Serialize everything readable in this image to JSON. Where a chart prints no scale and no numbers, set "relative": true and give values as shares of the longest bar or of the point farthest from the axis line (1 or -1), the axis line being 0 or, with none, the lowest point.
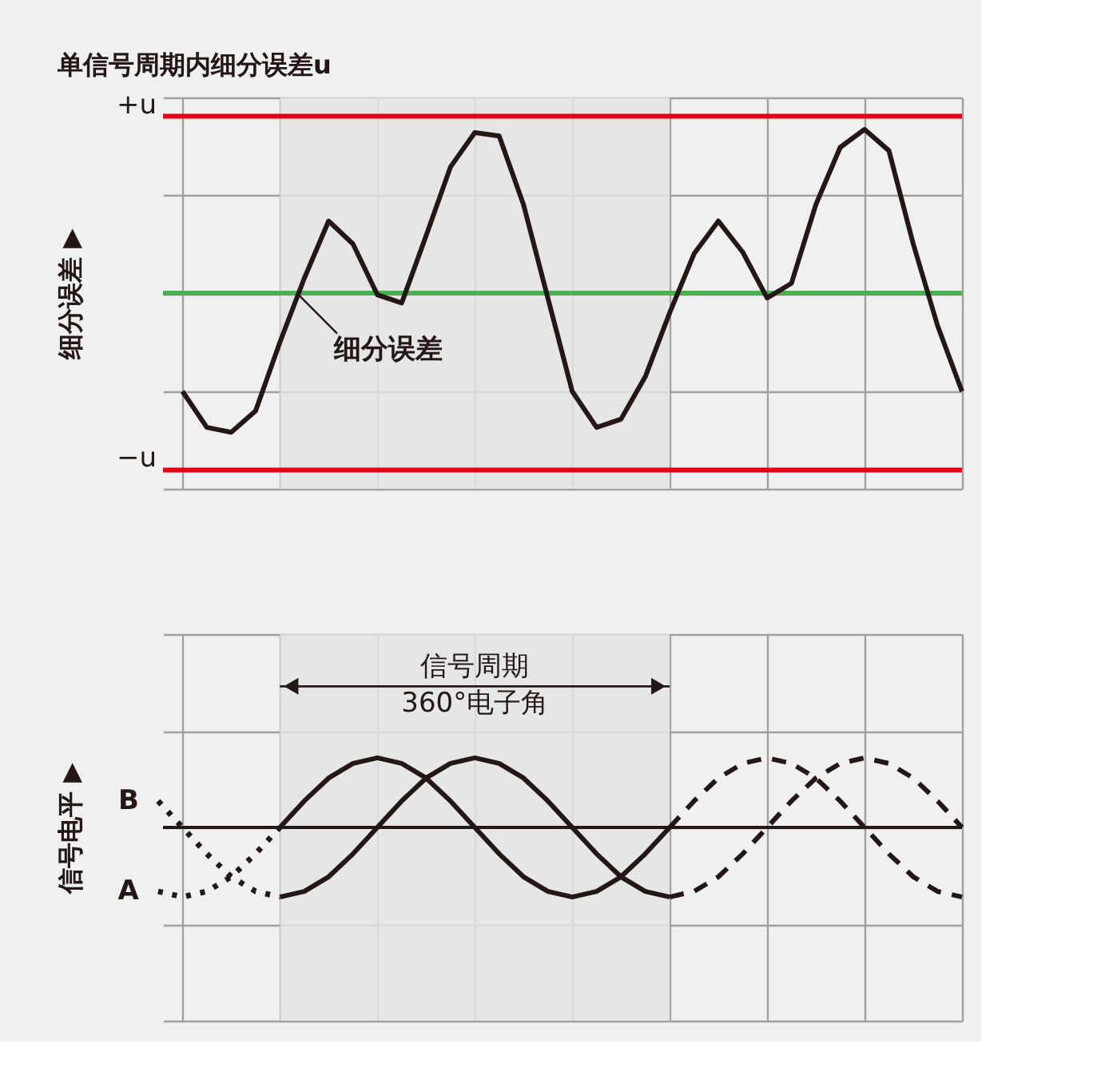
{
  "chart_data": [
    {
      "type": "line",
      "title": "单信号周期内细分误差u",
      "ylabel": "细分误差  ▶",
      "relative": true,
      "categories": [
        null,
        null,
        null,
        null,
        null,
        null,
        null,
        null,
        null,
        null,
        null,
        null,
        null,
        null,
        null,
        null,
        null,
        null,
        null,
        null,
        null,
        null,
        null,
        null,
        null,
        null,
        null,
        null,
        null,
        null,
        null,
        null,
        null
      ],
      "tick_labels": false,
      "grid": true,
      "line_style": "solid",
      "marker": "none",
      "ref_lines": [
        {
          "axis": "y",
          "value": 1.08,
          "label": "+u",
          "color": "#e60012"
        },
        {
          "axis": "y",
          "value": -1.08,
          "label": "−u",
          "color": "#e60012"
        },
        {
          "axis": "y",
          "value": 0,
          "color": "#4cb050"
        }
      ],
      "series": [
        {
          "color": "#231815",
          "values": [
            -0.6,
            -0.82,
            -0.85,
            -0.72,
            -0.3,
            0.09,
            0.44,
            0.3,
            -0.01,
            -0.06,
            0.35,
            0.77,
            0.98,
            0.96,
            0.54,
            -0.03,
            -0.6,
            -0.82,
            -0.77,
            -0.51,
            -0.12,
            0.24,
            0.44,
            0.25,
            -0.03,
            0.06,
            0.54,
            0.89,
            1,
            0.87,
            0.3,
            -0.2,
            -0.6
          ]
        }
      ],
      "annotations": [
        "细分误差"
      ]
    },
    {
      "type": "line",
      "ylabel": "信号电平  ▶",
      "relative": true,
      "categories": [
        null,
        null,
        null,
        null,
        null,
        null,
        null,
        null,
        null,
        null,
        null,
        null,
        null,
        null,
        null,
        null,
        null,
        null,
        null,
        null,
        null,
        null,
        null,
        null,
        null,
        null,
        null,
        null,
        null,
        null,
        null,
        null,
        null,
        null
      ],
      "tick_labels": false,
      "grid": true,
      "marker": "none",
      "series": [
        {
          "name": "B",
          "color": "#231815",
          "line_style": "dotted",
          "values": [
            0.38,
            0,
            -0.38,
            -0.71,
            -0.92,
            -1,
            null,
            null,
            null,
            null,
            null,
            null,
            null,
            null,
            null,
            null,
            null,
            null,
            null,
            null,
            null,
            null,
            null,
            null,
            null,
            null,
            null,
            null,
            null,
            null,
            null,
            null,
            null,
            null
          ]
        },
        {
          "color": "#231815",
          "line_style": "solid",
          "values": [
            null,
            null,
            null,
            null,
            null,
            -1,
            -0.92,
            -0.71,
            -0.38,
            0,
            0.38,
            0.71,
            0.92,
            1,
            0.92,
            0.71,
            0.38,
            0,
            -0.38,
            -0.71,
            -0.92,
            -1,
            null,
            null,
            null,
            null,
            null,
            null,
            null,
            null,
            null,
            null,
            null,
            null
          ]
        },
        {
          "color": "#231815",
          "line_style": "dashed",
          "values": [
            null,
            null,
            null,
            null,
            null,
            null,
            null,
            null,
            null,
            null,
            null,
            null,
            null,
            null,
            null,
            null,
            null,
            null,
            null,
            null,
            null,
            -1,
            -0.92,
            -0.71,
            -0.38,
            0,
            0.38,
            0.71,
            0.92,
            1,
            0.92,
            0.71,
            0.38,
            0
          ]
        },
        {
          "name": "A",
          "color": "#231815",
          "line_style": "dotted",
          "values": [
            -0.92,
            -1,
            -0.92,
            -0.71,
            -0.38,
            0,
            null,
            null,
            null,
            null,
            null,
            null,
            null,
            null,
            null,
            null,
            null,
            null,
            null,
            null,
            null,
            null,
            null,
            null,
            null,
            null,
            null,
            null,
            null,
            null,
            null,
            null,
            null,
            null
          ]
        },
        {
          "color": "#231815",
          "line_style": "solid",
          "values": [
            null,
            null,
            null,
            null,
            null,
            0,
            0.38,
            0.71,
            0.92,
            1,
            0.92,
            0.71,
            0.38,
            0,
            -0.38,
            -0.71,
            -0.92,
            -1,
            -0.92,
            -0.71,
            -0.38,
            0,
            null,
            null,
            null,
            null,
            null,
            null,
            null,
            null,
            null,
            null,
            null,
            null
          ]
        },
        {
          "color": "#231815",
          "line_style": "dashed",
          "values": [
            null,
            null,
            null,
            null,
            null,
            null,
            null,
            null,
            null,
            null,
            null,
            null,
            null,
            null,
            null,
            null,
            null,
            null,
            null,
            null,
            null,
            0,
            0.38,
            0.71,
            0.92,
            1,
            0.92,
            0.71,
            0.38,
            0,
            -0.38,
            -0.71,
            -0.92,
            -1
          ]
        }
      ],
      "annotations": [
        "信号周期",
        "360°电子角"
      ]
    }
  ]
}
